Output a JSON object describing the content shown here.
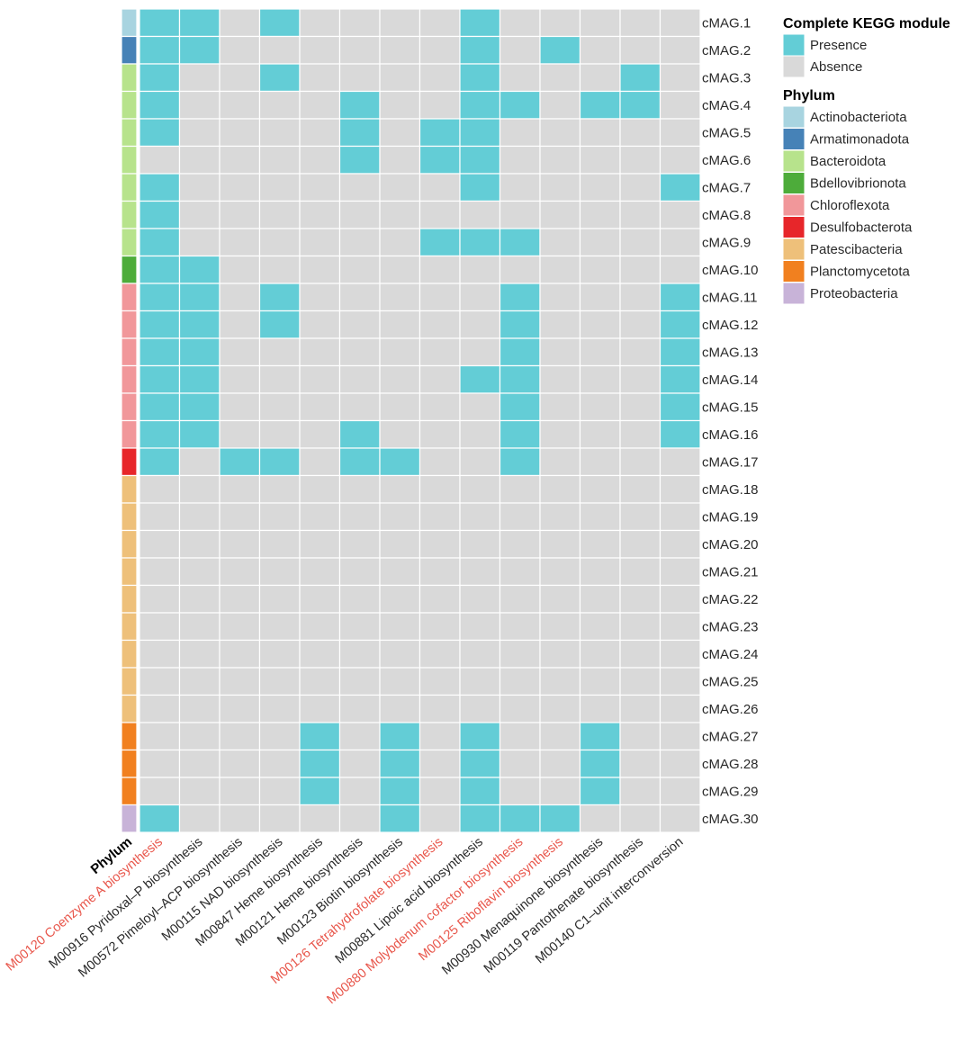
{
  "chart_data": {
    "type": "heatmap",
    "title": "",
    "rows": [
      "cMAG.1",
      "cMAG.2",
      "cMAG.3",
      "cMAG.4",
      "cMAG.5",
      "cMAG.6",
      "cMAG.7",
      "cMAG.8",
      "cMAG.9",
      "cMAG.10",
      "cMAG.11",
      "cMAG.12",
      "cMAG.13",
      "cMAG.14",
      "cMAG.15",
      "cMAG.16",
      "cMAG.17",
      "cMAG.18",
      "cMAG.19",
      "cMAG.20",
      "cMAG.21",
      "cMAG.22",
      "cMAG.23",
      "cMAG.24",
      "cMAG.25",
      "cMAG.26",
      "cMAG.27",
      "cMAG.28",
      "cMAG.29",
      "cMAG.30"
    ],
    "phylum_column_label": "Phylum",
    "columns": [
      {
        "label": "M00120 Coenzyme A biosynthesis",
        "highlight": true
      },
      {
        "label": "M00916 Pyridoxal–P biosynthesis",
        "highlight": false
      },
      {
        "label": "M00572 Pimeloyl–ACP biosynthesis",
        "highlight": false
      },
      {
        "label": "M00115 NAD biosynthesis",
        "highlight": false
      },
      {
        "label": "M00847 Heme biosynthesis",
        "highlight": false
      },
      {
        "label": "M00121 Heme biosynthesis",
        "highlight": false
      },
      {
        "label": "M00123 Biotin biosynthesis",
        "highlight": false
      },
      {
        "label": "M00126 Tetrahydrofolate biosynthesis",
        "highlight": true
      },
      {
        "label": "M00881 Lipoic acid biosynthesis",
        "highlight": false
      },
      {
        "label": "M00880 Molybdenum cofactor biosynthesis",
        "highlight": true
      },
      {
        "label": "M00125 Riboflavin biosynthesis",
        "highlight": true
      },
      {
        "label": "M00930 Menaquinone biosynthesis",
        "highlight": false
      },
      {
        "label": "M00119 Pantothenate biosynthesis",
        "highlight": false
      },
      {
        "label": "M00140 C1–unit interconversion",
        "highlight": false
      }
    ],
    "phylum": [
      "Actinobacteriota",
      "Armatimonadota",
      "Bacteroidota",
      "Bacteroidota",
      "Bacteroidota",
      "Bacteroidota",
      "Bacteroidota",
      "Bacteroidota",
      "Bacteroidota",
      "Bdellovibrionota",
      "Chloroflexota",
      "Chloroflexota",
      "Chloroflexota",
      "Chloroflexota",
      "Chloroflexota",
      "Chloroflexota",
      "Desulfobacterota",
      "Patescibacteria",
      "Patescibacteria",
      "Patescibacteria",
      "Patescibacteria",
      "Patescibacteria",
      "Patescibacteria",
      "Patescibacteria",
      "Patescibacteria",
      "Patescibacteria",
      "Planctomycetota",
      "Planctomycetota",
      "Planctomycetota",
      "Proteobacteria"
    ],
    "matrix": [
      [
        1,
        1,
        0,
        1,
        0,
        0,
        0,
        0,
        1,
        0,
        0,
        0,
        0,
        0
      ],
      [
        1,
        1,
        0,
        0,
        0,
        0,
        0,
        0,
        1,
        0,
        1,
        0,
        0,
        0
      ],
      [
        1,
        0,
        0,
        1,
        0,
        0,
        0,
        0,
        1,
        0,
        0,
        0,
        1,
        0
      ],
      [
        1,
        0,
        0,
        0,
        0,
        1,
        0,
        0,
        1,
        1,
        0,
        1,
        1,
        0
      ],
      [
        1,
        0,
        0,
        0,
        0,
        1,
        0,
        1,
        1,
        0,
        0,
        0,
        0,
        0
      ],
      [
        0,
        0,
        0,
        0,
        0,
        1,
        0,
        1,
        1,
        0,
        0,
        0,
        0,
        0
      ],
      [
        1,
        0,
        0,
        0,
        0,
        0,
        0,
        0,
        1,
        0,
        0,
        0,
        0,
        1
      ],
      [
        1,
        0,
        0,
        0,
        0,
        0,
        0,
        0,
        0,
        0,
        0,
        0,
        0,
        0
      ],
      [
        1,
        0,
        0,
        0,
        0,
        0,
        0,
        1,
        1,
        1,
        0,
        0,
        0,
        0
      ],
      [
        1,
        1,
        0,
        0,
        0,
        0,
        0,
        0,
        0,
        0,
        0,
        0,
        0,
        0
      ],
      [
        1,
        1,
        0,
        1,
        0,
        0,
        0,
        0,
        0,
        1,
        0,
        0,
        0,
        1
      ],
      [
        1,
        1,
        0,
        1,
        0,
        0,
        0,
        0,
        0,
        1,
        0,
        0,
        0,
        1
      ],
      [
        1,
        1,
        0,
        0,
        0,
        0,
        0,
        0,
        0,
        1,
        0,
        0,
        0,
        1
      ],
      [
        1,
        1,
        0,
        0,
        0,
        0,
        0,
        0,
        1,
        1,
        0,
        0,
        0,
        1
      ],
      [
        1,
        1,
        0,
        0,
        0,
        0,
        0,
        0,
        0,
        1,
        0,
        0,
        0,
        1
      ],
      [
        1,
        1,
        0,
        0,
        0,
        1,
        0,
        0,
        0,
        1,
        0,
        0,
        0,
        1
      ],
      [
        1,
        0,
        1,
        1,
        0,
        1,
        1,
        0,
        0,
        1,
        0,
        0,
        0,
        0
      ],
      [
        0,
        0,
        0,
        0,
        0,
        0,
        0,
        0,
        0,
        0,
        0,
        0,
        0,
        0
      ],
      [
        0,
        0,
        0,
        0,
        0,
        0,
        0,
        0,
        0,
        0,
        0,
        0,
        0,
        0
      ],
      [
        0,
        0,
        0,
        0,
        0,
        0,
        0,
        0,
        0,
        0,
        0,
        0,
        0,
        0
      ],
      [
        0,
        0,
        0,
        0,
        0,
        0,
        0,
        0,
        0,
        0,
        0,
        0,
        0,
        0
      ],
      [
        0,
        0,
        0,
        0,
        0,
        0,
        0,
        0,
        0,
        0,
        0,
        0,
        0,
        0
      ],
      [
        0,
        0,
        0,
        0,
        0,
        0,
        0,
        0,
        0,
        0,
        0,
        0,
        0,
        0
      ],
      [
        0,
        0,
        0,
        0,
        0,
        0,
        0,
        0,
        0,
        0,
        0,
        0,
        0,
        0
      ],
      [
        0,
        0,
        0,
        0,
        0,
        0,
        0,
        0,
        0,
        0,
        0,
        0,
        0,
        0
      ],
      [
        0,
        0,
        0,
        0,
        0,
        0,
        0,
        0,
        0,
        0,
        0,
        0,
        0,
        0
      ],
      [
        0,
        0,
        0,
        0,
        1,
        0,
        1,
        0,
        1,
        0,
        0,
        1,
        0,
        0
      ],
      [
        0,
        0,
        0,
        0,
        1,
        0,
        1,
        0,
        1,
        0,
        0,
        1,
        0,
        0
      ],
      [
        0,
        0,
        0,
        0,
        1,
        0,
        1,
        0,
        1,
        0,
        0,
        1,
        0,
        0
      ],
      [
        1,
        0,
        0,
        0,
        0,
        0,
        1,
        0,
        1,
        1,
        1,
        0,
        0,
        0
      ]
    ],
    "legend": {
      "module_title": "Complete KEGG module",
      "module_entries": [
        {
          "label": "Presence",
          "value": 1,
          "color": "#63CDD6"
        },
        {
          "label": "Absence",
          "value": 0,
          "color": "#D9D9D9"
        }
      ],
      "phylum_title": "Phylum",
      "phylum_entries": [
        {
          "label": "Actinobacteriota",
          "color": "#A8D4E0"
        },
        {
          "label": "Armatimonadota",
          "color": "#4682B7"
        },
        {
          "label": "Bacteroidota",
          "color": "#B7E38C"
        },
        {
          "label": "Bdellovibrionota",
          "color": "#4DAC3A"
        },
        {
          "label": "Chloroflexota",
          "color": "#F1979A"
        },
        {
          "label": "Desulfobacterota",
          "color": "#E7262A"
        },
        {
          "label": "Patescibacteria",
          "color": "#EEC07A"
        },
        {
          "label": "Planctomycetota",
          "color": "#F1801F"
        },
        {
          "label": "Proteobacteria",
          "color": "#C8B3D8"
        }
      ]
    },
    "colors": {
      "presence": "#63CDD6",
      "absence": "#D9D9D9",
      "label_highlight": "#E8564B",
      "label_default": "#2a2a2a"
    }
  }
}
